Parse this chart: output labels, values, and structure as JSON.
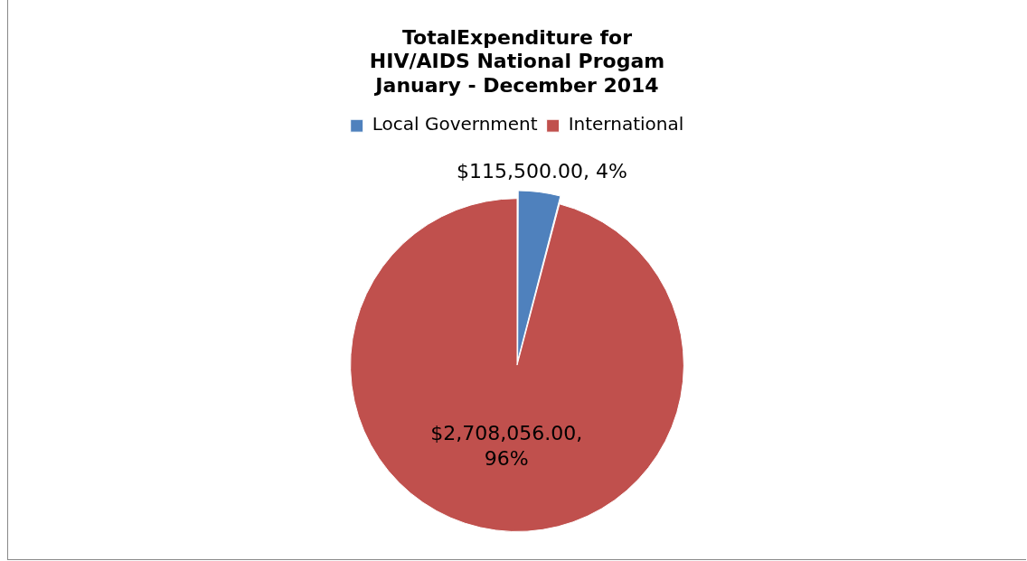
{
  "chart_data": {
    "type": "pie",
    "title": "TotalExpenditure for\nHIV/AIDS National Progam\nJanuary - December 2014",
    "categories": [
      "Local Government",
      "International"
    ],
    "values": [
      115500,
      2708056
    ],
    "colors": [
      "#4f81bd",
      "#c0504d"
    ],
    "value_labels": [
      "$115,500.00, 4%",
      "$2,708,056.00,\n96%"
    ],
    "legend": "top"
  }
}
